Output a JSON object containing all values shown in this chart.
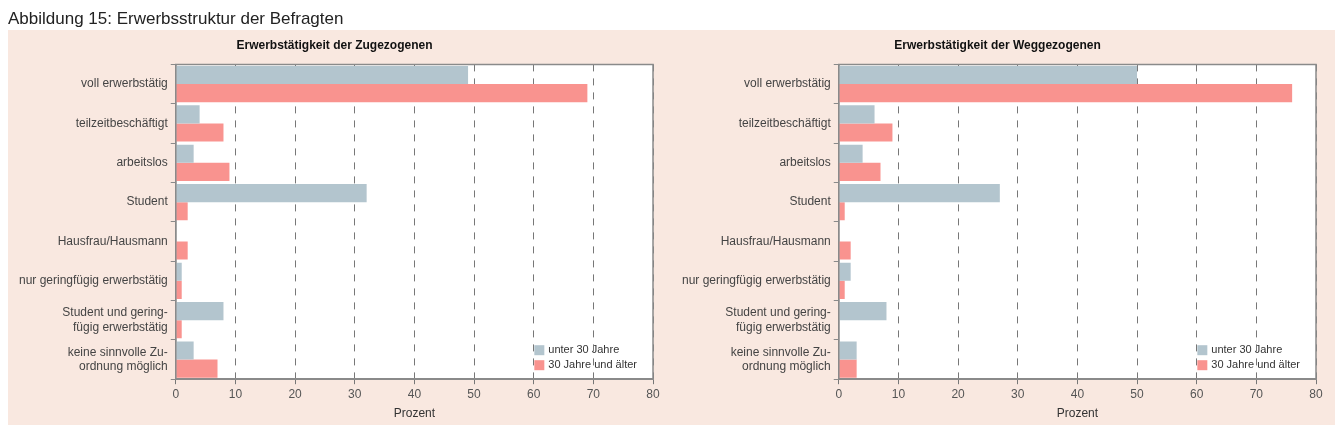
{
  "chart_data": [
    {
      "type": "bar",
      "orientation": "horizontal",
      "title": "Erwerbstätigkeit der Zugezogenen",
      "annotations": [
        "Abbildung 15: Erwerbsstruktur der Befragten"
      ],
      "xlabel": "Prozent",
      "categories": [
        "voll erwerbstätig",
        "teilzeitbeschäftigt",
        "arbeitslos",
        "Student",
        "Hausfrau/Hausmann",
        "nur geringfügig erwerbstätig",
        "Student und gering-\nfügig erwerbstätig",
        "keine sinnvolle Zu-\nordnung möglich"
      ],
      "series": [
        {
          "name": "unter 30 Jahre",
          "color": "#b3c5ce",
          "values": [
            49,
            4,
            3,
            32,
            0,
            1,
            8,
            3
          ]
        },
        {
          "name": "30 Jahre und älter",
          "color": "#f9938f",
          "values": [
            69,
            8,
            9,
            2,
            2,
            1,
            1,
            7
          ]
        }
      ],
      "xlim": [
        0,
        80
      ],
      "xticks": [
        0,
        10,
        20,
        30,
        40,
        50,
        60,
        70,
        80
      ],
      "grid": "x",
      "legend": "bottom right"
    },
    {
      "type": "bar",
      "orientation": "horizontal",
      "title": "Erwerbstätigkeit der Weggezogenen",
      "xlabel": "Prozent",
      "categories": [
        "voll erwerbstätig",
        "teilzeitbeschäftigt",
        "arbeitslos",
        "Student",
        "Hausfrau/Hausmann",
        "nur geringfügig erwerbstätig",
        "Student und gering-\nfügig erwerbstätig",
        "keine sinnvolle Zu-\nordnung möglich"
      ],
      "series": [
        {
          "name": "unter 30 Jahre",
          "color": "#b3c5ce",
          "values": [
            50,
            6,
            4,
            27,
            0,
            2,
            8,
            3
          ]
        },
        {
          "name": "30 Jahre und älter",
          "color": "#f9938f",
          "values": [
            76,
            9,
            7,
            1,
            2,
            1,
            0,
            3
          ]
        }
      ],
      "xlim": [
        0,
        80
      ],
      "xticks": [
        0,
        10,
        20,
        30,
        40,
        50,
        60,
        70,
        80
      ],
      "grid": "x",
      "legend": "bottom right"
    }
  ]
}
